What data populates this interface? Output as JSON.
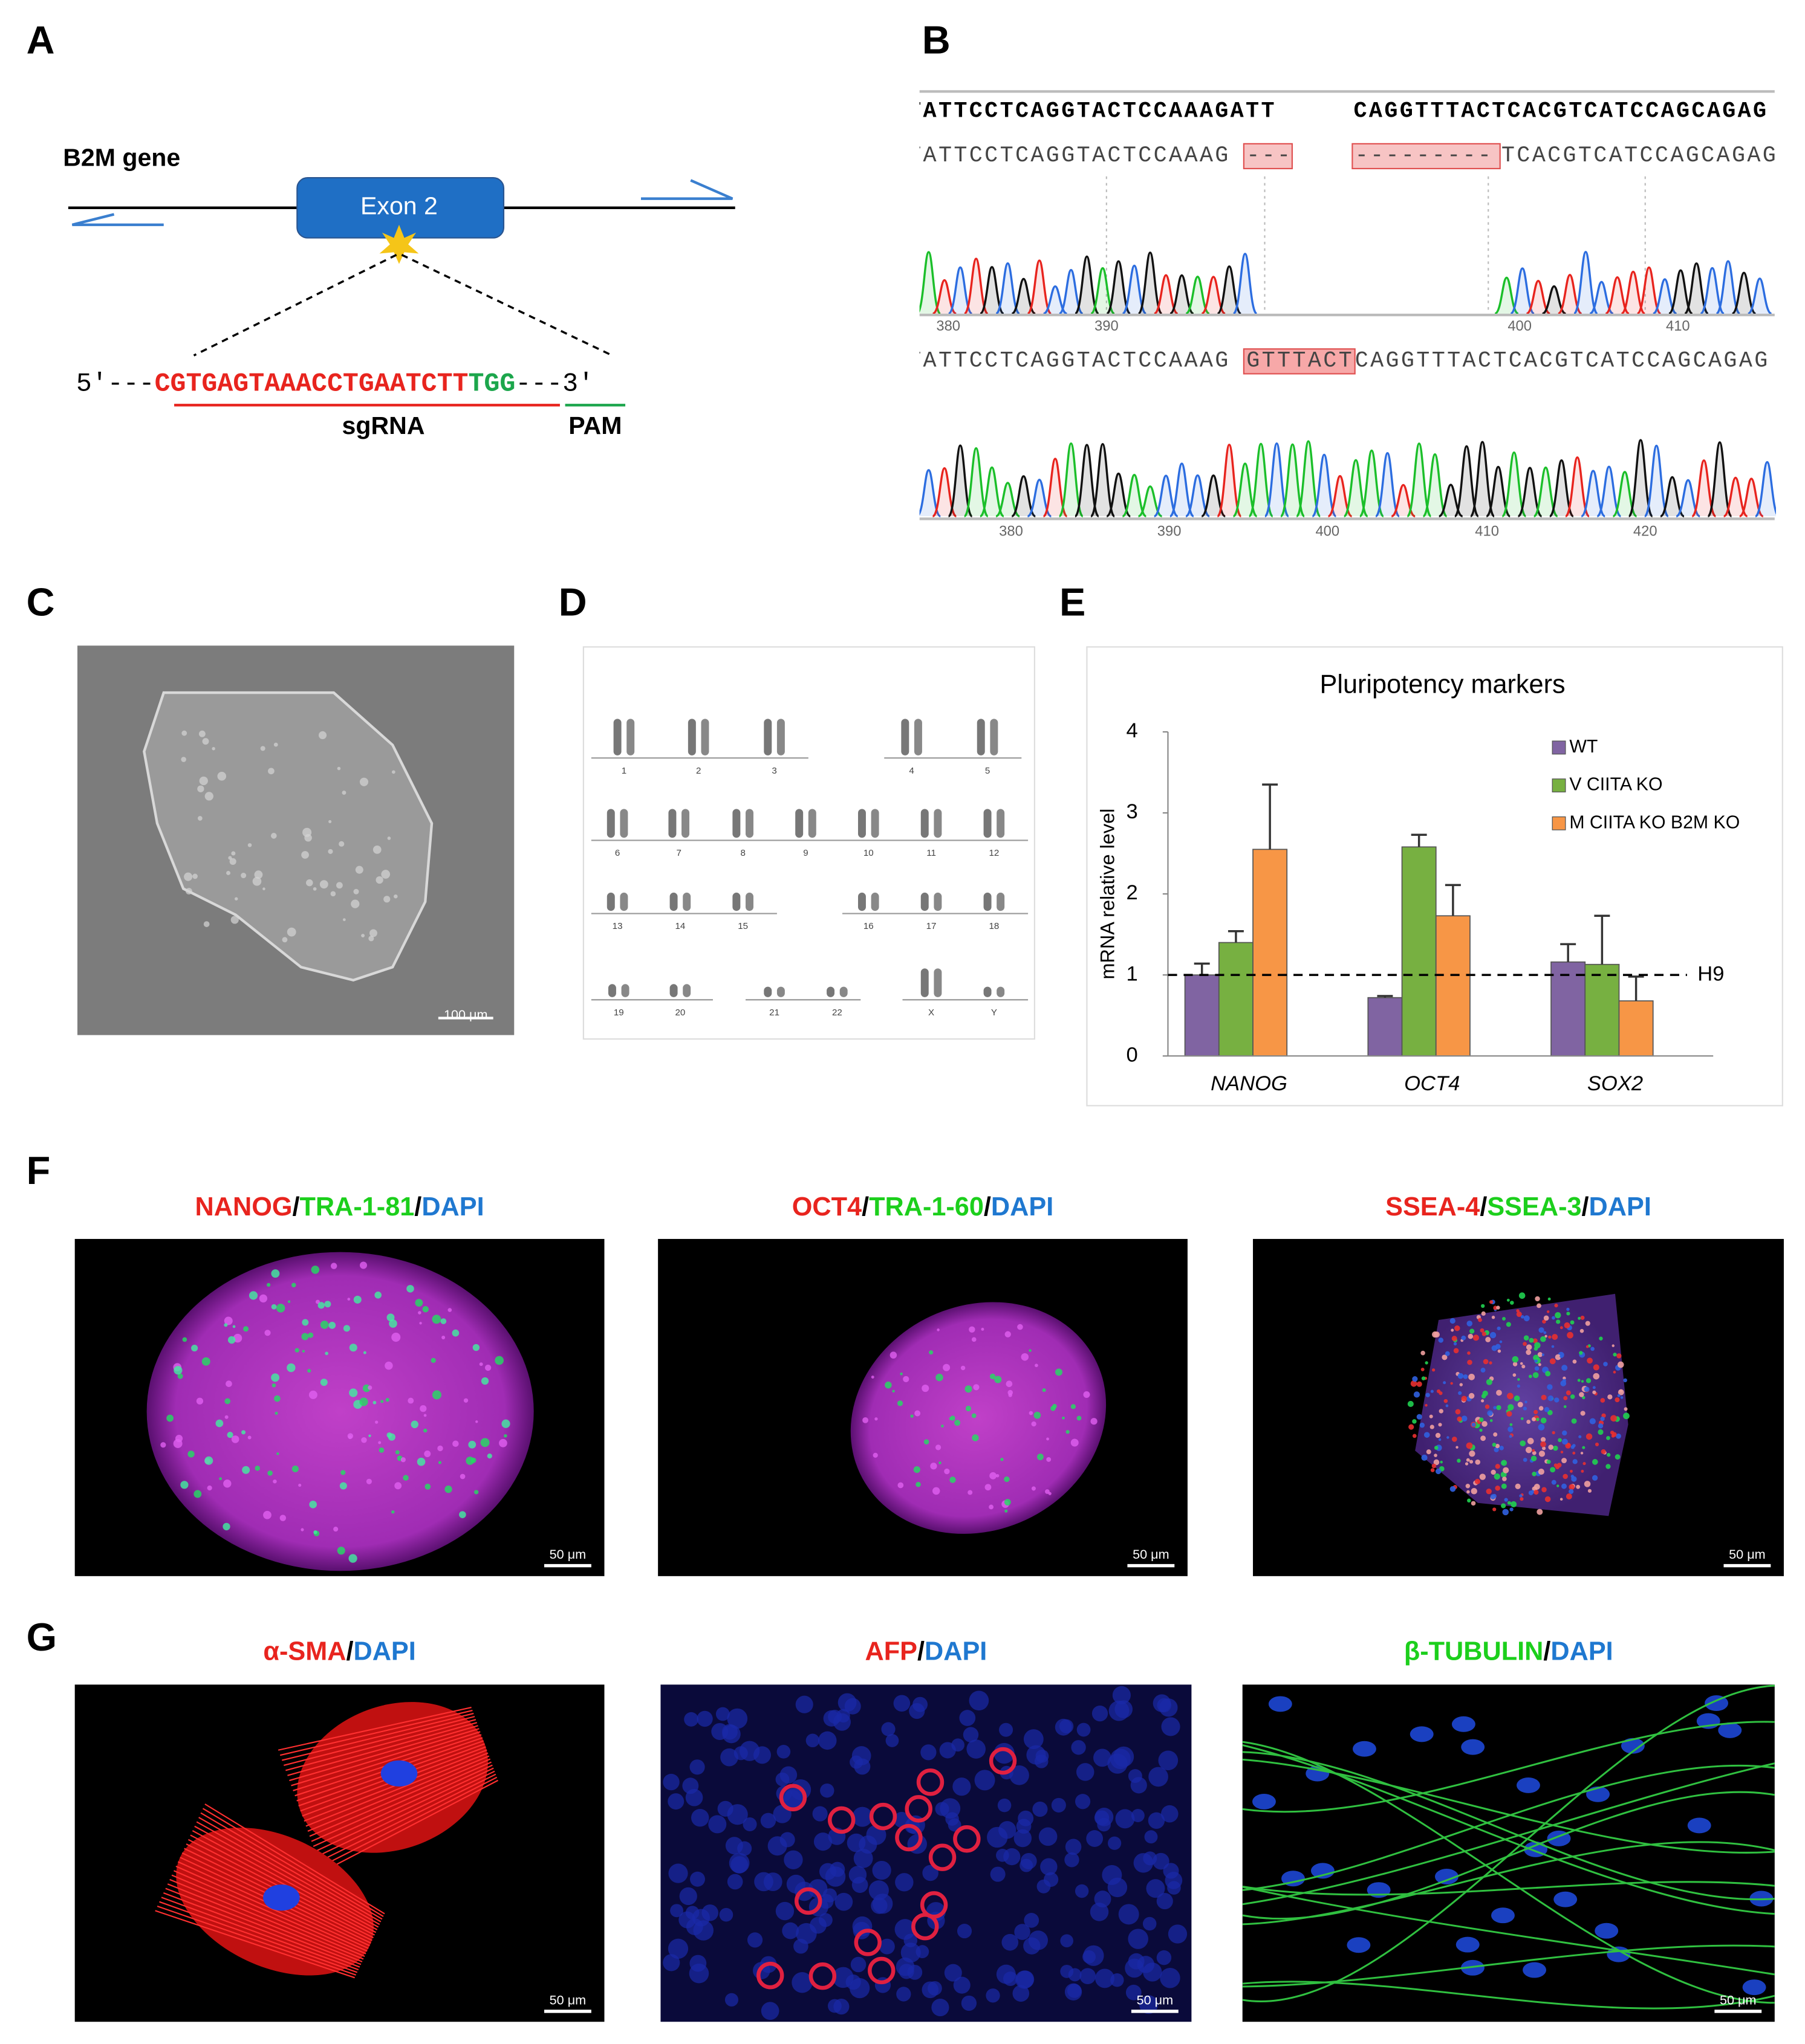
{
  "panel_labels": [
    "A",
    "B",
    "C",
    "D",
    "E",
    "F",
    "G"
  ],
  "panel_a": {
    "gene_label": "B2M gene",
    "exon_label": "Exon 2",
    "five_prime": "5′---",
    "sgrna_seq": "CGTGAGTAAACCTGAATCTT",
    "pam_seq": "TGG",
    "three_prime": "---3′",
    "sgrna_label": "sgRNA",
    "pam_label": "PAM"
  },
  "panel_b": {
    "reference": [
      "TATTCCTCAGGTACTCCAAAGATT",
      "CAGGTTTACTCACGTCATCCAGCAGAG"
    ],
    "allele1": [
      "TATTCCTCAGGTACTCCAAAG",
      "---",
      "---------",
      "TCACGTCATCCAGCAGAG"
    ],
    "trace1_ticks": [
      380,
      390,
      400,
      410
    ],
    "allele2": [
      "TATTCCTCAGGTACTCCAAAG",
      "GTTTACT",
      "CAGGTTTACTCACGTCATCCAGCAGAG"
    ],
    "trace2_ticks": [
      380,
      390,
      400,
      410,
      420
    ]
  },
  "panel_c": {
    "scale_bar": "100 μm"
  },
  "panel_d": {
    "chromosomes": [
      "1",
      "2",
      "3",
      "4",
      "5",
      "6",
      "7",
      "8",
      "9",
      "10",
      "11",
      "12",
      "13",
      "14",
      "15",
      "16",
      "17",
      "18",
      "19",
      "20",
      "21",
      "22",
      "X",
      "Y"
    ]
  },
  "chart_data": {
    "type": "bar",
    "title": "Pluripotency markers",
    "y_label": "mRNA relative level",
    "categories": [
      "NANOG",
      "OCT4",
      "SOX2"
    ],
    "series": [
      {
        "name": "WT",
        "color": "#8064a2",
        "values": [
          1.0,
          0.72,
          1.16
        ],
        "errors": [
          0.14,
          0.02,
          0.22
        ]
      },
      {
        "name": "V CIITA KO",
        "color": "#77b041",
        "values": [
          1.4,
          2.58,
          1.13
        ],
        "errors": [
          0.14,
          0.15,
          0.6
        ]
      },
      {
        "name": "M CIITA KO B2M KO",
        "color": "#f79646",
        "values": [
          2.55,
          1.73,
          0.68
        ],
        "errors": [
          0.8,
          0.38,
          0.3
        ]
      }
    ],
    "ylim": [
      0,
      4
    ],
    "yticks": [
      0,
      1,
      2,
      3,
      4
    ],
    "reference_line": {
      "value": 1,
      "label": "H9"
    },
    "legend": "upper right"
  },
  "panel_f": [
    {
      "title": [
        {
          "text": "NANOG",
          "color": "#e8241e"
        },
        {
          "text": "/",
          "color": "#000000"
        },
        {
          "text": "TRA-1-81",
          "color": "#1ccf1c"
        },
        {
          "text": "/",
          "color": "#000000"
        },
        {
          "text": "DAPI",
          "color": "#1f78d0"
        }
      ],
      "scale_bar": "50 μm"
    },
    {
      "title": [
        {
          "text": "OCT4",
          "color": "#e8241e"
        },
        {
          "text": "/",
          "color": "#000000"
        },
        {
          "text": "TRA-1-60",
          "color": "#1ccf1c"
        },
        {
          "text": "/",
          "color": "#000000"
        },
        {
          "text": "DAPI",
          "color": "#1f78d0"
        }
      ],
      "scale_bar": "50 μm"
    },
    {
      "title": [
        {
          "text": "SSEA-4",
          "color": "#e8241e"
        },
        {
          "text": "/",
          "color": "#000000"
        },
        {
          "text": "SSEA-3",
          "color": "#1ccf1c"
        },
        {
          "text": "/",
          "color": "#000000"
        },
        {
          "text": "DAPI",
          "color": "#1f78d0"
        }
      ],
      "scale_bar": "50 μm"
    }
  ],
  "panel_g": [
    {
      "title": [
        {
          "text": "α-SMA",
          "color": "#e8241e"
        },
        {
          "text": "/",
          "color": "#000000"
        },
        {
          "text": "DAPI",
          "color": "#1f78d0"
        }
      ],
      "scale_bar": "50 μm"
    },
    {
      "title": [
        {
          "text": "AFP",
          "color": "#e8241e"
        },
        {
          "text": "/",
          "color": "#000000"
        },
        {
          "text": "DAPI",
          "color": "#1f78d0"
        }
      ],
      "scale_bar": "50 μm"
    },
    {
      "title": [
        {
          "text": "β-TUBULIN",
          "color": "#1ccf1c"
        },
        {
          "text": "/",
          "color": "#000000"
        },
        {
          "text": "DAPI",
          "color": "#1f78d0"
        }
      ],
      "scale_bar": "50 μm"
    }
  ]
}
